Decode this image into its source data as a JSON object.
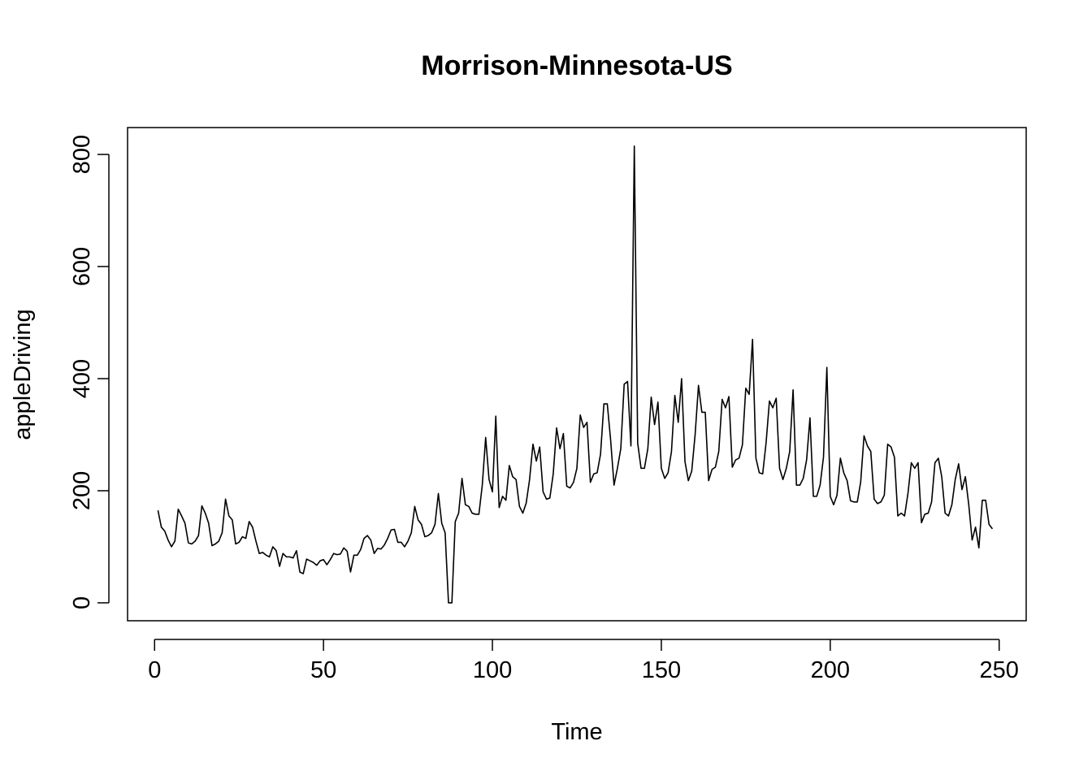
{
  "chart_data": {
    "type": "line",
    "title": "Morrison-Minnesota-US",
    "xlabel": "Time",
    "ylabel": "appleDriving",
    "xlim": [
      -8,
      258
    ],
    "ylim": [
      -32,
      848
    ],
    "xticks": [
      0,
      50,
      100,
      150,
      200,
      250
    ],
    "yticks": [
      0,
      200,
      400,
      600,
      800
    ],
    "grid": false,
    "legend": "none",
    "line_color": "#000000",
    "series": [
      {
        "x_start": 1,
        "values": [
          165,
          135,
          128,
          112,
          100,
          110,
          167,
          155,
          142,
          107,
          105,
          110,
          120,
          173,
          160,
          142,
          102,
          105,
          110,
          125,
          185,
          155,
          148,
          105,
          108,
          118,
          115,
          145,
          135,
          110,
          88,
          90,
          85,
          82,
          100,
          93,
          65,
          88,
          82,
          82,
          80,
          93,
          55,
          52,
          78,
          75,
          72,
          67,
          75,
          77,
          68,
          77,
          88,
          86,
          87,
          98,
          92,
          55,
          85,
          85,
          95,
          115,
          120,
          112,
          88,
          97,
          96,
          103,
          115,
          130,
          131,
          108,
          108,
          100,
          110,
          125,
          172,
          148,
          140,
          118,
          120,
          125,
          140,
          195,
          142,
          125,
          0,
          0,
          145,
          160,
          222,
          175,
          172,
          160,
          158,
          158,
          210,
          295,
          220,
          198,
          333,
          170,
          190,
          183,
          245,
          225,
          220,
          172,
          160,
          178,
          220,
          283,
          253,
          278,
          198,
          185,
          187,
          230,
          312,
          275,
          302,
          208,
          205,
          215,
          240,
          335,
          313,
          322,
          215,
          230,
          232,
          265,
          355,
          355,
          290,
          210,
          240,
          275,
          390,
          395,
          280,
          815,
          285,
          240,
          240,
          275,
          367,
          318,
          358,
          240,
          222,
          232,
          270,
          370,
          322,
          400,
          252,
          218,
          235,
          300,
          388,
          340,
          340,
          218,
          238,
          242,
          270,
          363,
          348,
          368,
          242,
          255,
          258,
          282,
          383,
          372,
          470,
          258,
          232,
          230,
          285,
          360,
          348,
          365,
          240,
          220,
          240,
          270,
          380,
          210,
          210,
          222,
          255,
          330,
          190,
          190,
          210,
          260,
          420,
          190,
          175,
          192,
          258,
          232,
          218,
          182,
          180,
          180,
          215,
          298,
          280,
          270,
          185,
          177,
          180,
          192,
          283,
          278,
          260,
          155,
          160,
          155,
          195,
          250,
          240,
          250,
          143,
          158,
          160,
          180,
          250,
          258,
          225,
          160,
          155,
          175,
          220,
          248,
          202,
          225,
          175,
          112,
          135,
          98,
          183,
          183,
          140,
          132
        ]
      }
    ]
  }
}
